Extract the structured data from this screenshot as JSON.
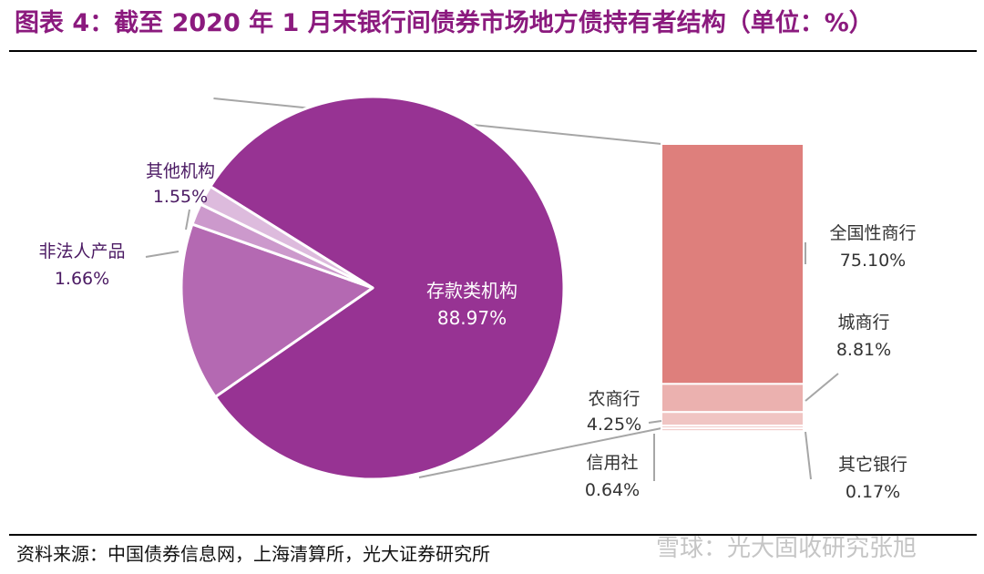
{
  "header": {
    "title_prefix": "图表 4",
    "title_text": "截至 2020 年 1 月末银行间债券市场地方债持有者结构（单位：%）"
  },
  "footer": {
    "source": "资料来源：中国债券信息网，上海清算所，光大证券研究所",
    "watermark": "雪球：光大固收研究张旭"
  },
  "colors": {
    "title": "#8B1A7E",
    "pie_main": "#973393",
    "pie_sub": "#B469B2",
    "pie_light": "#CC99CC",
    "pie_lighter": "#DDBBDD",
    "bar_main": "#DE7F7C",
    "bar_mid": "#EBB1AF",
    "bar_light": "#F0C5C3",
    "label_dark": "#333333",
    "label_purple": "#4B1A63",
    "connector": "#A6A6A6"
  },
  "chart_data": {
    "type": "pie",
    "subtype": "bar-of-pie",
    "title": "截至 2020 年 1 月末银行间债券市场地方债持有者结构（单位：%）",
    "unit": "%",
    "pie": {
      "slices": [
        {
          "name": "存款类机构",
          "value": 88.97,
          "value_label": "88.97%"
        },
        {
          "name": "非法人产品",
          "value": 1.66,
          "value_label": "1.66%"
        },
        {
          "name": "其他机构",
          "value": 1.55,
          "value_label": "1.55%"
        }
      ]
    },
    "breakdown_of": "存款类机构",
    "bar": {
      "segments": [
        {
          "name": "全国性商行",
          "value": 75.1,
          "value_label": "75.10%"
        },
        {
          "name": "城商行",
          "value": 8.81,
          "value_label": "8.81%"
        },
        {
          "name": "农商行",
          "value": 4.25,
          "value_label": "4.25%"
        },
        {
          "name": "信用社",
          "value": 0.64,
          "value_label": "0.64%"
        },
        {
          "name": "其它银行",
          "value": 0.17,
          "value_label": "0.17%"
        }
      ]
    }
  }
}
